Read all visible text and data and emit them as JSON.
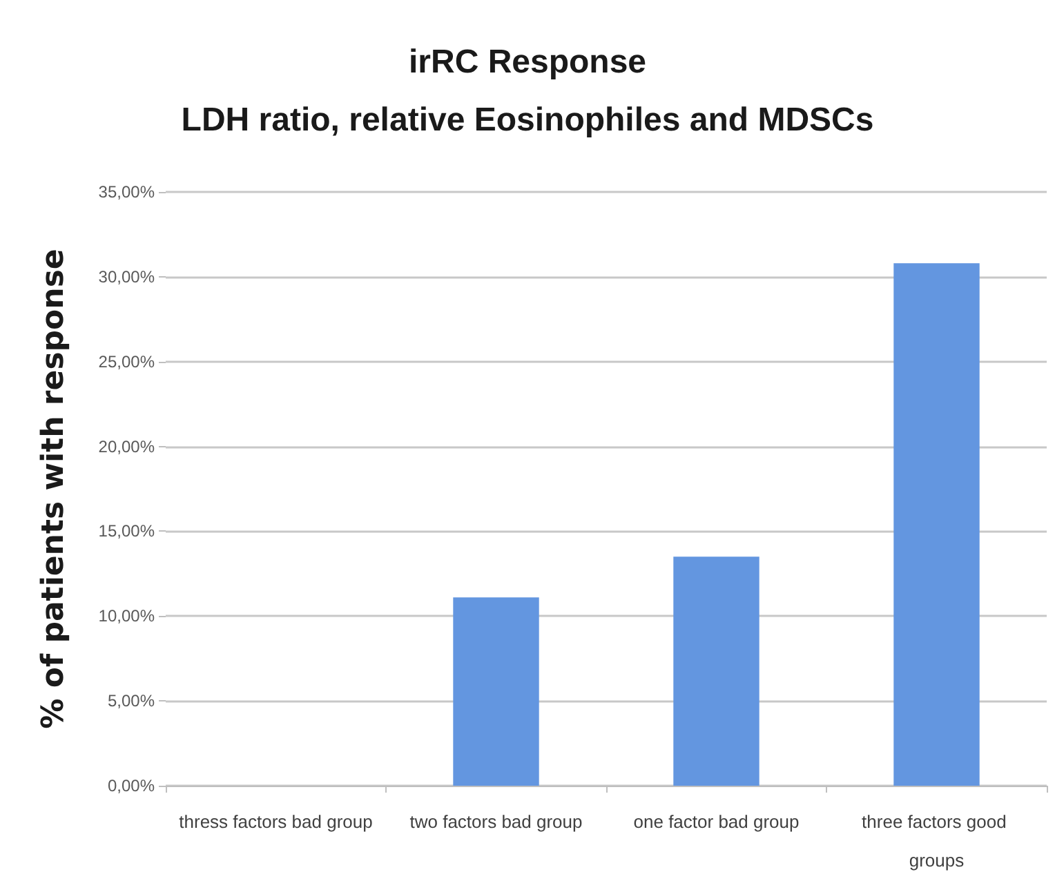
{
  "chart_data": {
    "type": "bar",
    "title": "irRC Response",
    "subtitle": "LDH ratio, relative Eosinophiles and MDSCs",
    "ylabel": "% of patients with response",
    "categories": [
      "thress factors bad group",
      "two factors bad group",
      "one factor bad group",
      "three factors good groups"
    ],
    "values": [
      0,
      11.1,
      13.5,
      30.8
    ],
    "color": "#6396e0",
    "ylim": [
      0,
      35
    ],
    "yticks": [
      {
        "value": 0,
        "label": "0,00%"
      },
      {
        "value": 5,
        "label": "5,00%"
      },
      {
        "value": 10,
        "label": "10,00%"
      },
      {
        "value": 15,
        "label": "15,00%"
      },
      {
        "value": 20,
        "label": "20,00%"
      },
      {
        "value": 25,
        "label": "25,00%"
      },
      {
        "value": 30,
        "label": "30,00%"
      },
      {
        "value": 35,
        "label": "35,00%"
      }
    ],
    "grid": "y"
  }
}
